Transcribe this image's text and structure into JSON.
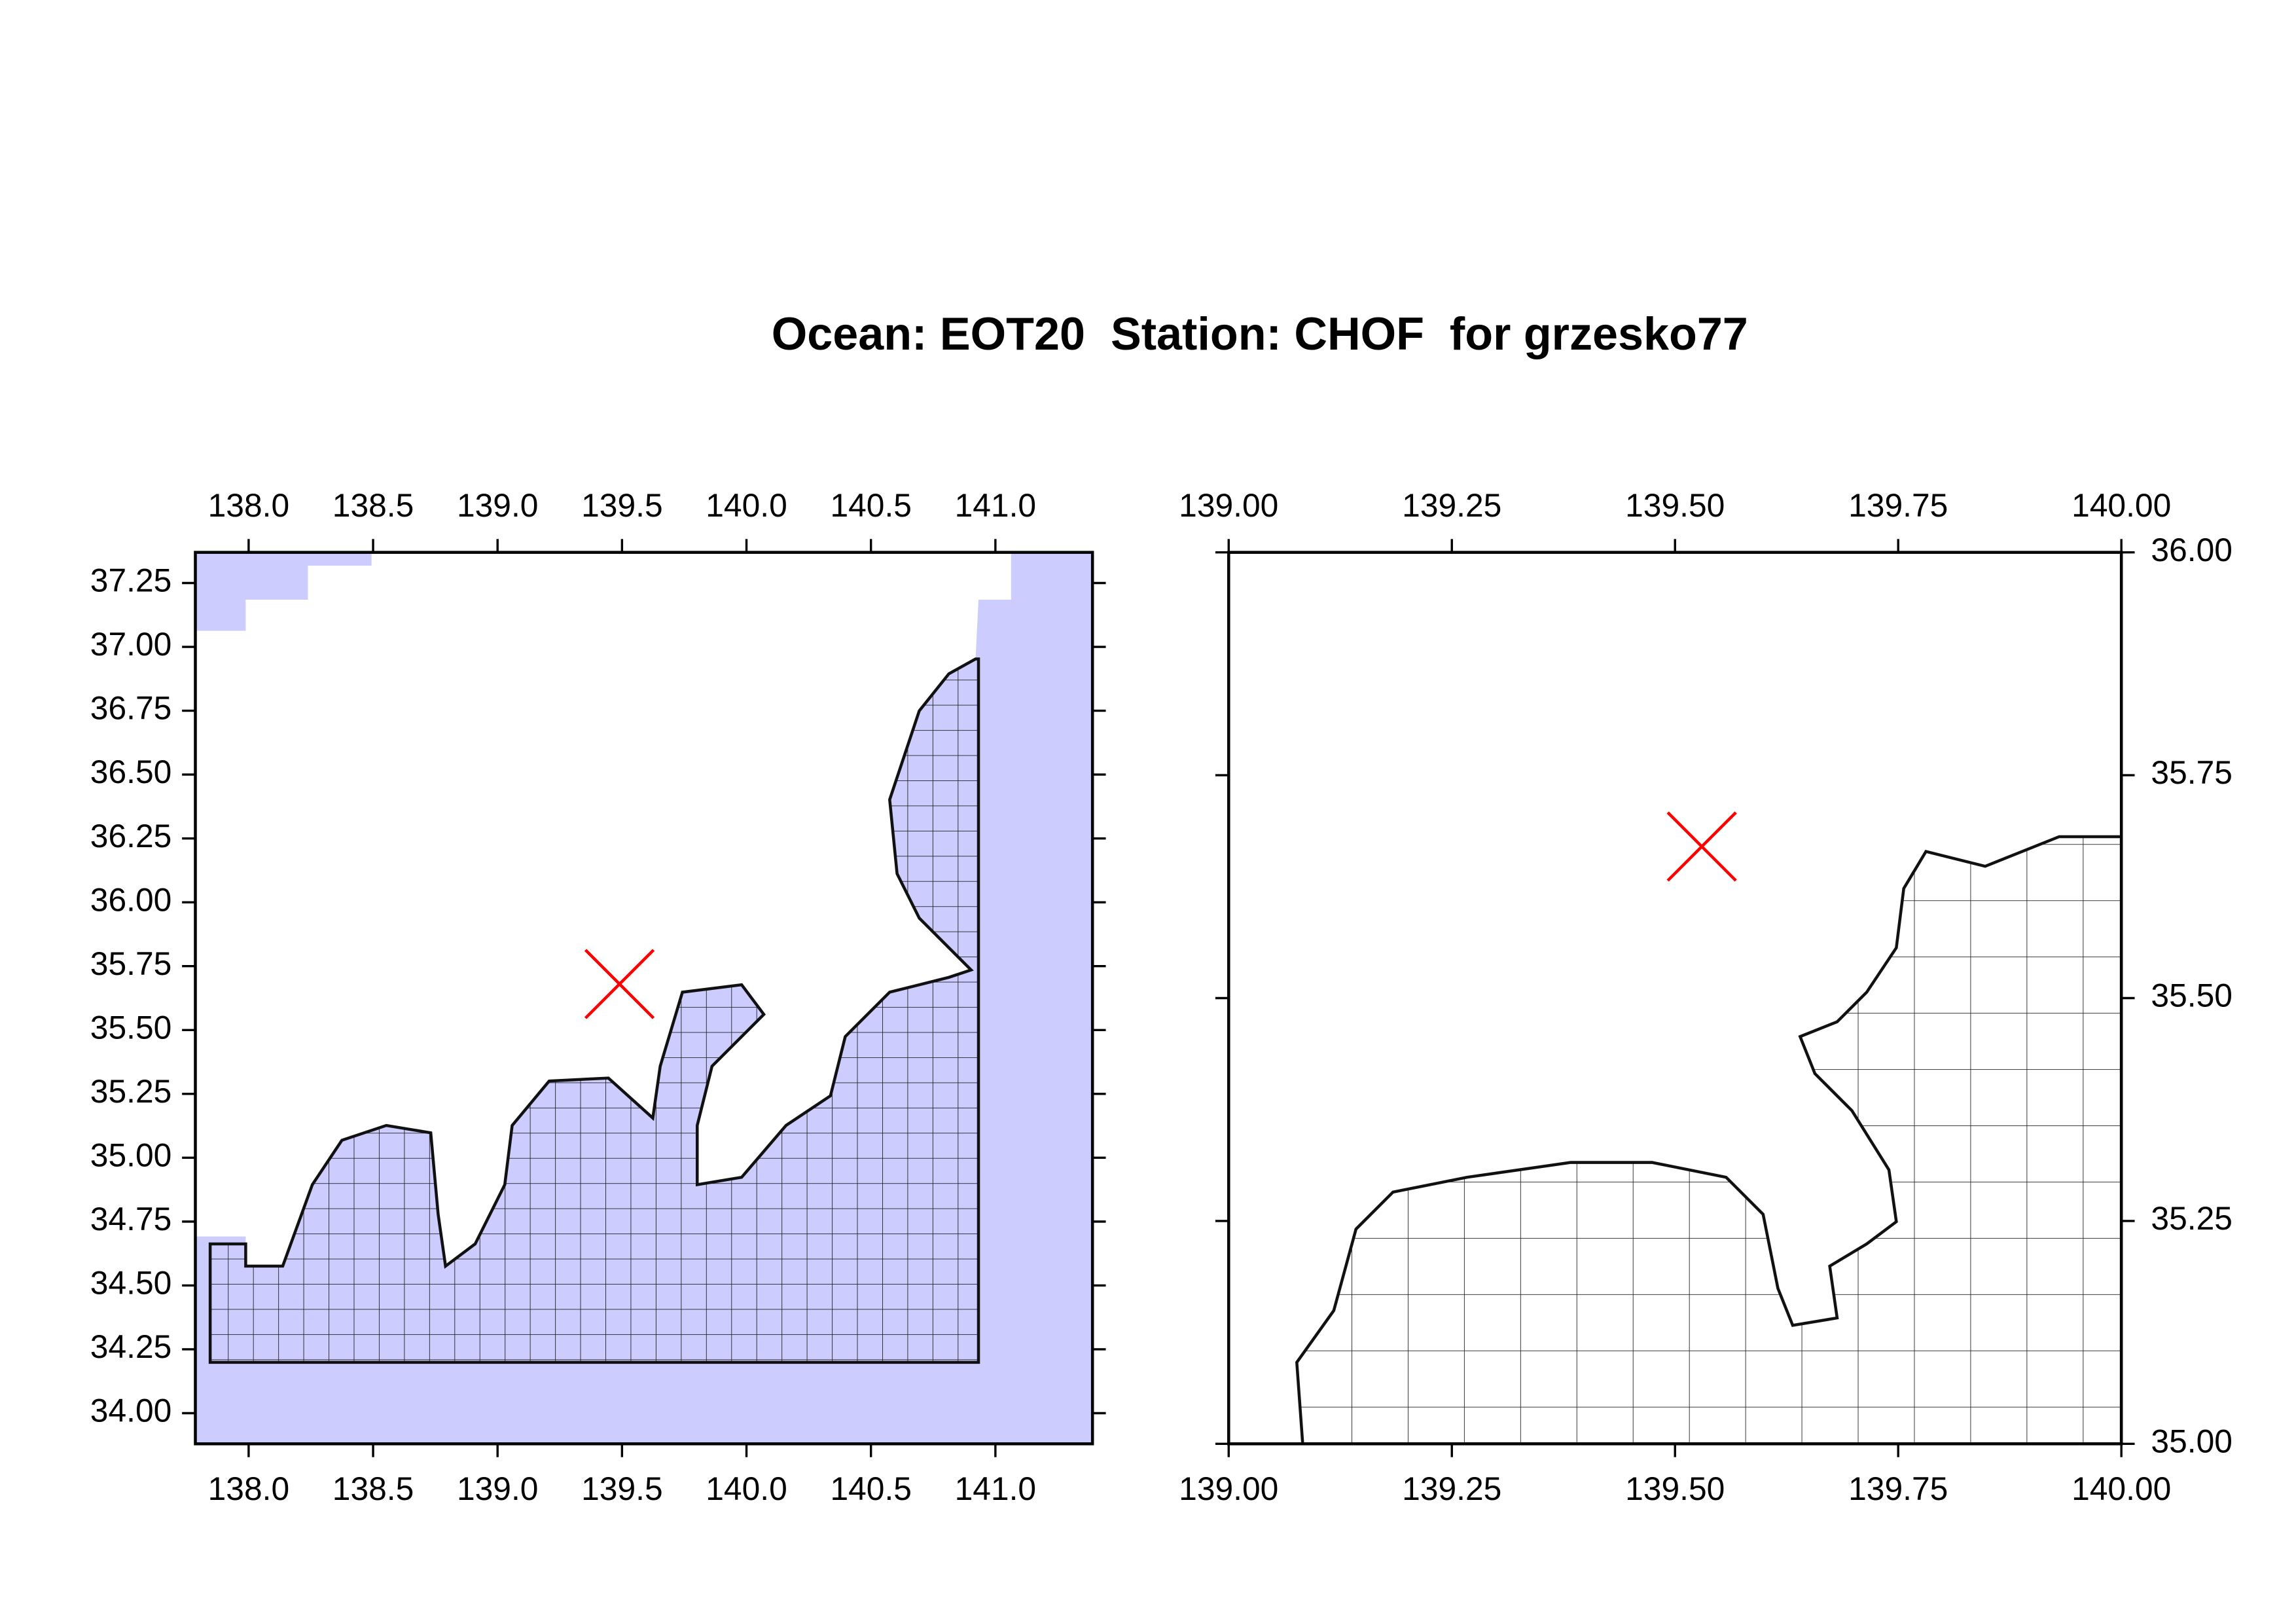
{
  "title": "Ocean: EOT20  Station: CHOF  for grzesko77",
  "chart_data": [
    {
      "type": "map",
      "xlim": [
        137.786,
        141.39
      ],
      "ylim": [
        33.88,
        37.37
      ],
      "xticks": [
        {
          "value": 138,
          "label": "138.0"
        },
        138.5,
        {
          "value": 139,
          "label": "139.0"
        },
        139.5,
        {
          "value": 140,
          "label": "140.0"
        },
        140.5,
        {
          "value": 141,
          "label": "141.0"
        }
      ],
      "yticks": [
        {
          "value": 34,
          "label": "34.00"
        },
        34.25,
        {
          "value": 34.5,
          "label": "34.50"
        },
        34.75,
        {
          "value": 35,
          "label": "35.00"
        },
        35.25,
        {
          "value": 35.5,
          "label": "35.50"
        },
        35.75,
        {
          "value": 36,
          "label": "36.00"
        },
        36.25,
        {
          "value": 36.5,
          "label": "36.50"
        },
        36.75,
        {
          "value": 37,
          "label": "37.00"
        },
        37.25
      ],
      "station": {
        "x": 139.49,
        "y": 35.68
      },
      "marker_color": "#ff0000"
    },
    {
      "type": "map",
      "xlim": [
        139,
        140
      ],
      "ylim": [
        35,
        36
      ],
      "xticks": [
        {
          "value": 139,
          "label": "139.00"
        },
        139.25,
        {
          "value": 139.5,
          "label": "139.50"
        },
        139.75,
        {
          "value": 140,
          "label": "140.00"
        }
      ],
      "yticks": [
        {
          "value": 35,
          "label": "35.00"
        },
        35.25,
        {
          "value": 35.5,
          "label": "35.50"
        },
        35.75,
        {
          "value": 36,
          "label": "36.00"
        }
      ],
      "station": {
        "x": 139.53,
        "y": 35.67
      },
      "marker_color": "#ff0000"
    }
  ]
}
